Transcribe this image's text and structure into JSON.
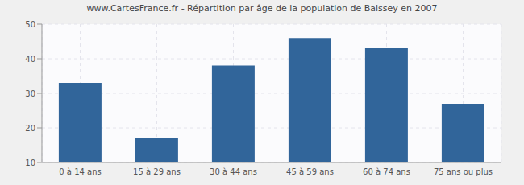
{
  "chart_data": {
    "type": "bar",
    "title": "www.CartesFrance.fr - Répartition par âge de la population de Baissey en 2007",
    "categories": [
      "0 à 14 ans",
      "15 à 29 ans",
      "30 à 44 ans",
      "45 à 59 ans",
      "60 à 74 ans",
      "75 ans ou plus"
    ],
    "values": [
      33,
      17,
      38,
      46,
      43,
      27
    ],
    "color": "#31659a",
    "ylim": [
      10,
      50
    ],
    "yticks": [
      10,
      20,
      30,
      40,
      50
    ],
    "grid": true
  }
}
